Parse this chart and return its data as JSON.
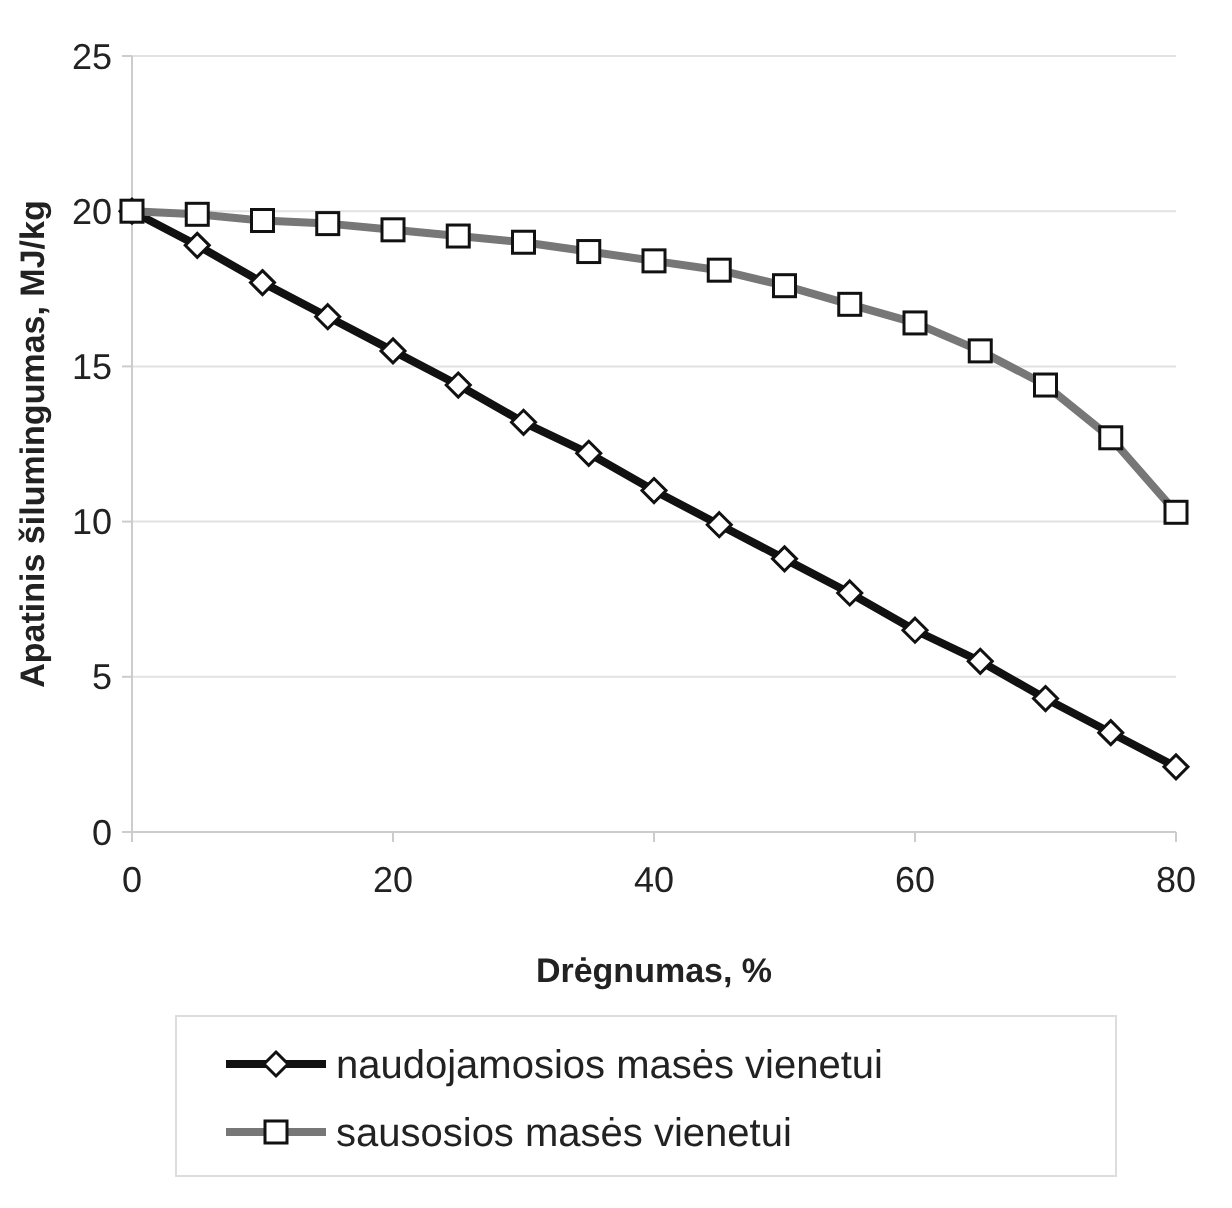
{
  "chart_data": {
    "type": "line",
    "xlabel": "Drėgnumas, %",
    "ylabel": "Apatinis šilumingumas, MJ/kg",
    "x": [
      0,
      5,
      10,
      15,
      20,
      25,
      30,
      35,
      40,
      45,
      50,
      55,
      60,
      65,
      70,
      75,
      80
    ],
    "series": [
      {
        "name": "naudojamosios masės vienetui",
        "color": "#111111",
        "marker": "diamond",
        "values": [
          20,
          18.9,
          17.7,
          16.6,
          15.5,
          14.4,
          13.2,
          12.2,
          11.0,
          9.9,
          8.8,
          7.7,
          6.5,
          5.5,
          4.3,
          3.2,
          2.1
        ]
      },
      {
        "name": "sausosios masės vienetui",
        "color": "#777777",
        "marker": "square",
        "values": [
          20,
          19.9,
          19.7,
          19.6,
          19.4,
          19.2,
          19.0,
          18.7,
          18.4,
          18.1,
          17.6,
          17.0,
          16.4,
          15.5,
          14.4,
          12.7,
          10.3
        ]
      }
    ],
    "xlim": [
      0,
      80
    ],
    "xticks": [
      0,
      20,
      40,
      60,
      80
    ],
    "ylim": [
      0,
      25
    ],
    "yticks": [
      0,
      5,
      10,
      15,
      20,
      25
    ],
    "grid": "y",
    "legend": "bottom",
    "line_style": "solid"
  }
}
